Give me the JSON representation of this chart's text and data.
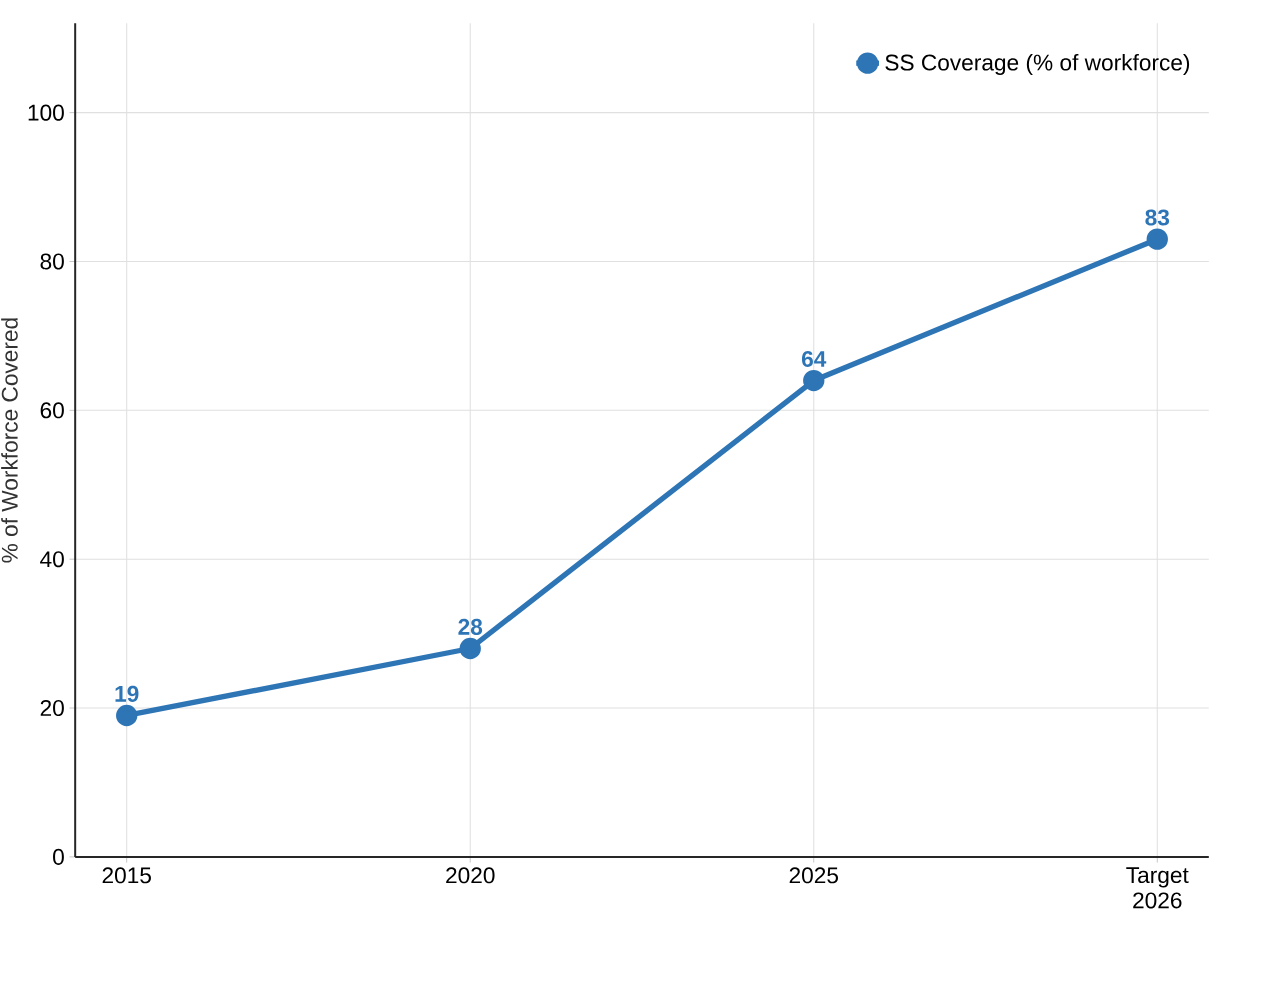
{
  "chart_data": {
    "type": "line",
    "ylabel": "% of Workforce Covered",
    "categories": [
      "2015",
      "2020",
      "2025",
      "Target 2026"
    ],
    "series": [
      {
        "name": "SS Coverage (% of workforce)",
        "color": "#2e75b6",
        "values": [
          19,
          28,
          64,
          83
        ]
      }
    ],
    "ylim": [
      0,
      112
    ],
    "yticks": [
      0,
      20,
      40,
      60,
      80,
      100
    ],
    "grid": true,
    "legend": "top right",
    "marker": "circle",
    "line_style": "solid",
    "data_labels": true
  }
}
